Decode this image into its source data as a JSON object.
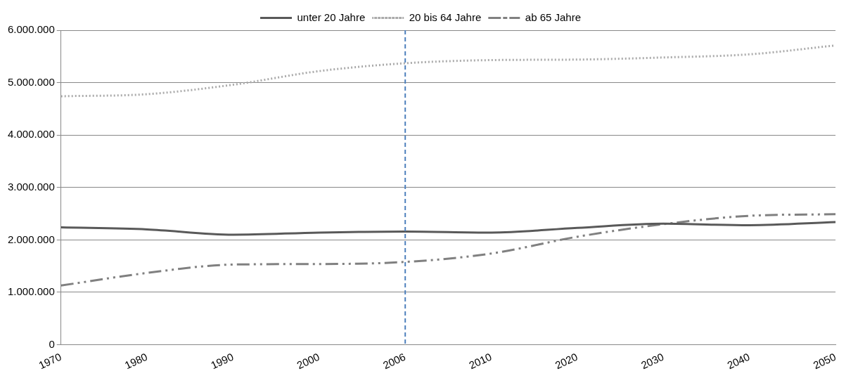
{
  "chart_data": {
    "type": "line",
    "categories": [
      "1970",
      "1980",
      "1990",
      "2000",
      "2006",
      "2010",
      "2020",
      "2030",
      "2040",
      "2050"
    ],
    "series": [
      {
        "name": "unter 20 Jahre",
        "color": "#595959",
        "line_style": "solid",
        "values": [
          2240000,
          2200000,
          2100000,
          2140000,
          2160000,
          2140000,
          2230000,
          2310000,
          2280000,
          2340000
        ]
      },
      {
        "name": "20 bis 64 Jahre",
        "color": "#aaaaaa",
        "line_style": "dotted",
        "values": [
          4740000,
          4780000,
          4960000,
          5220000,
          5370000,
          5430000,
          5440000,
          5480000,
          5540000,
          5710000
        ]
      },
      {
        "name": "ab 65 Jahre",
        "color": "#808080",
        "line_style": "dashed",
        "values": [
          1130000,
          1370000,
          1530000,
          1540000,
          1580000,
          1740000,
          2060000,
          2300000,
          2460000,
          2490000
        ]
      }
    ],
    "ylim": [
      0,
      6000000
    ],
    "yticks": [
      {
        "value": 0,
        "label": "0"
      },
      {
        "value": 1000000,
        "label": "1.000.000"
      },
      {
        "value": 2000000,
        "label": "2.000.000"
      },
      {
        "value": 3000000,
        "label": "3.000.000"
      },
      {
        "value": 4000000,
        "label": "4.000.000"
      },
      {
        "value": 5000000,
        "label": "5.000.000"
      },
      {
        "value": 6000000,
        "label": "6.000.000"
      }
    ],
    "ref_lines": [
      {
        "axis": "x",
        "value": "2006",
        "color": "#4f81bd",
        "line_style": "dashed"
      }
    ],
    "grid": "y",
    "legend": "top",
    "marker": "none"
  }
}
